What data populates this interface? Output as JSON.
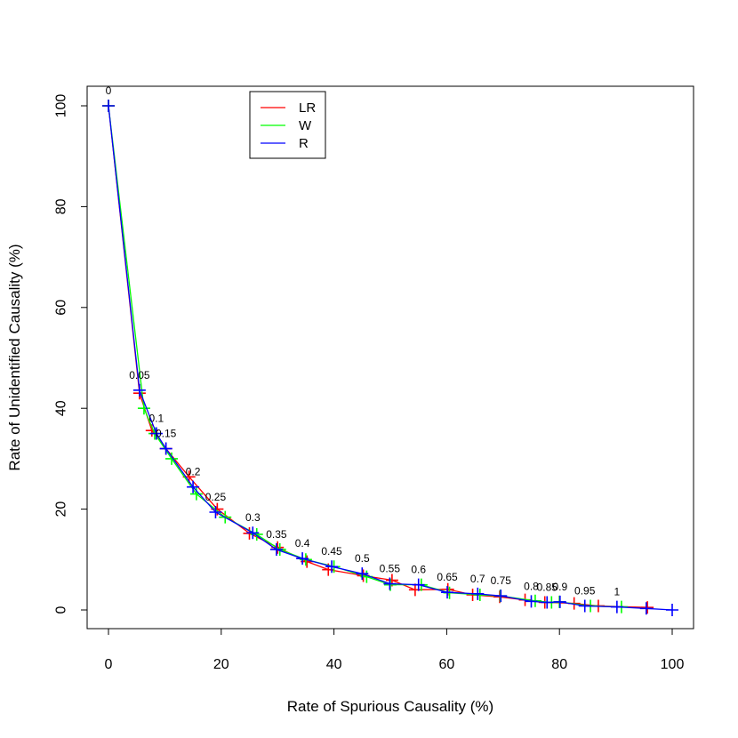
{
  "chart_data": {
    "type": "line",
    "title": "",
    "xlabel": "Rate of Spurious Causality (%)",
    "ylabel": "Rate of Unidentified Causality (%)",
    "xlim": [
      0,
      100
    ],
    "ylim": [
      0,
      100
    ],
    "xticks": [
      0,
      20,
      40,
      60,
      80,
      100
    ],
    "yticks": [
      0,
      20,
      40,
      60,
      80,
      100
    ],
    "grid": false,
    "legend_position": "top-left",
    "marker": "+",
    "threshold_labels": [
      "0",
      "0.05",
      "0.1",
      "0.15",
      "0.2",
      "0.25",
      "0.3",
      "0.35",
      "0.4",
      "0.45",
      "0.5",
      "0.55",
      "0.6",
      "0.65",
      "0.7",
      "0.75",
      "0.8",
      "0.85",
      "0.9",
      "0.95",
      "1"
    ],
    "series": [
      {
        "name": "LR",
        "color": "#ff0000",
        "x": [
          0,
          5.5,
          7.7,
          10.2,
          14.3,
          19.3,
          25.0,
          30.0,
          35.2,
          39.0,
          45.2,
          50.3,
          54.4,
          60.2,
          64.6,
          69.4,
          73.9,
          77.4,
          82.6,
          86.9,
          95.6
        ],
        "y": [
          100,
          43.0,
          35.6,
          32.0,
          26.4,
          20.0,
          15.2,
          12.4,
          9.6,
          8.0,
          6.8,
          5.9,
          4.0,
          4.1,
          3.0,
          2.6,
          2.0,
          1.5,
          1.3,
          0.8,
          0.5
        ]
      },
      {
        "name": "W",
        "color": "#00ff00",
        "x": [
          0,
          6.3,
          8.2,
          11.2,
          15.6,
          20.7,
          26.3,
          30.4,
          35.0,
          40.0,
          45.8,
          50.0,
          55.5,
          60.5,
          65.9,
          69.5,
          75.7,
          78.6,
          80.0,
          85.5,
          91.0
        ],
        "y": [
          100,
          40.0,
          35.0,
          30.0,
          23.0,
          18.4,
          15.0,
          12.0,
          10.0,
          8.6,
          6.6,
          5.0,
          5.0,
          3.4,
          3.0,
          2.8,
          1.8,
          1.5,
          1.6,
          0.8,
          0.6
        ]
      },
      {
        "name": "R",
        "color": "#0000ff",
        "x": [
          0,
          5.5,
          8.5,
          10.2,
          15.0,
          19.0,
          25.6,
          29.8,
          34.4,
          39.6,
          45.0,
          49.9,
          55.0,
          60.1,
          65.5,
          69.6,
          75.0,
          77.8,
          80.1,
          84.5,
          90.2,
          95.4,
          100.0
        ],
        "y": [
          100,
          43.6,
          35.0,
          32.0,
          24.4,
          19.4,
          15.3,
          12.0,
          10.2,
          8.6,
          7.2,
          5.2,
          5.0,
          3.5,
          3.2,
          2.8,
          1.7,
          1.5,
          1.6,
          0.8,
          0.6,
          0.3,
          0.0
        ]
      }
    ]
  }
}
